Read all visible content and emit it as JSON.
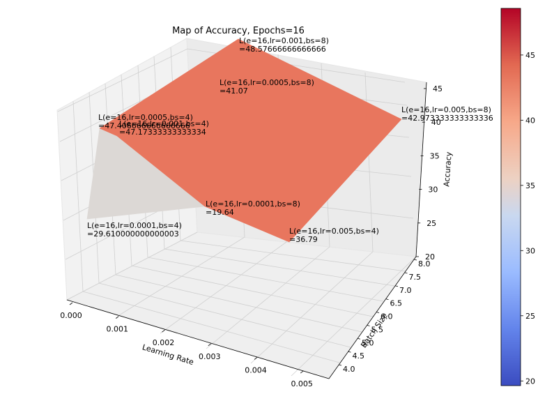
{
  "chart_data": {
    "type": "surface",
    "title": "Map of Accuracy, Epochs=16",
    "xlabel": "Learning Rate",
    "ylabel": "Batch Size",
    "zlabel": "Accuracy",
    "x_ticks": [
      "0.000",
      "0.001",
      "0.002",
      "0.003",
      "0.004",
      "0.005"
    ],
    "y_ticks": [
      "4.0",
      "4.5",
      "5.0",
      "5.5",
      "6.0",
      "6.5",
      "7.0",
      "7.5",
      "8.0"
    ],
    "z_ticks": [
      "20",
      "25",
      "30",
      "35",
      "40",
      "45"
    ],
    "colorbar_ticks": [
      "20",
      "25",
      "30",
      "35",
      "40",
      "45"
    ],
    "colormap": "coolwarm",
    "colors": {
      "high": "#b40426",
      "mid": "#dddddd",
      "low": "#3b4cc0",
      "face_upper": "#e8765e",
      "face_lower": "#dcd8d5"
    },
    "points": [
      {
        "lr": 0.0001,
        "bs": 4,
        "acc": 29.610000000000003,
        "label": "L(e=16,lr=0.0001,bs=4)",
        "value_text": "=29.610000000000003"
      },
      {
        "lr": 0.0005,
        "bs": 4,
        "acc": 47.406666666666666,
        "label": "L(e=16,lr=0.0005,bs=4)",
        "value_text": "=47.406666666666666"
      },
      {
        "lr": 0.001,
        "bs": 4,
        "acc": 47.17333333333334,
        "label": "L(e=16,lr=0.001,bs=4)",
        "value_text": "=47.17333333333334"
      },
      {
        "lr": 0.005,
        "bs": 4,
        "acc": 36.79,
        "label": "L(e=16,lr=0.005,bs=4)",
        "value_text": "=36.79"
      },
      {
        "lr": 0.0001,
        "bs": 8,
        "acc": 19.64,
        "label": "L(e=16,lr=0.0001,bs=8)",
        "value_text": "=19.64"
      },
      {
        "lr": 0.0005,
        "bs": 8,
        "acc": 41.07,
        "label": "L(e=16,lr=0.0005,bs=8)",
        "value_text": "=41.07"
      },
      {
        "lr": 0.001,
        "bs": 8,
        "acc": 48.57666666666666,
        "label": "L(e=16,lr=0.001,bs=8)",
        "value_text": "=48.57666666666666"
      },
      {
        "lr": 0.005,
        "bs": 8,
        "acc": 42.973333333333336,
        "label": "L(e=16,lr=0.005,bs=8)",
        "value_text": "=42.973333333333336"
      }
    ]
  }
}
